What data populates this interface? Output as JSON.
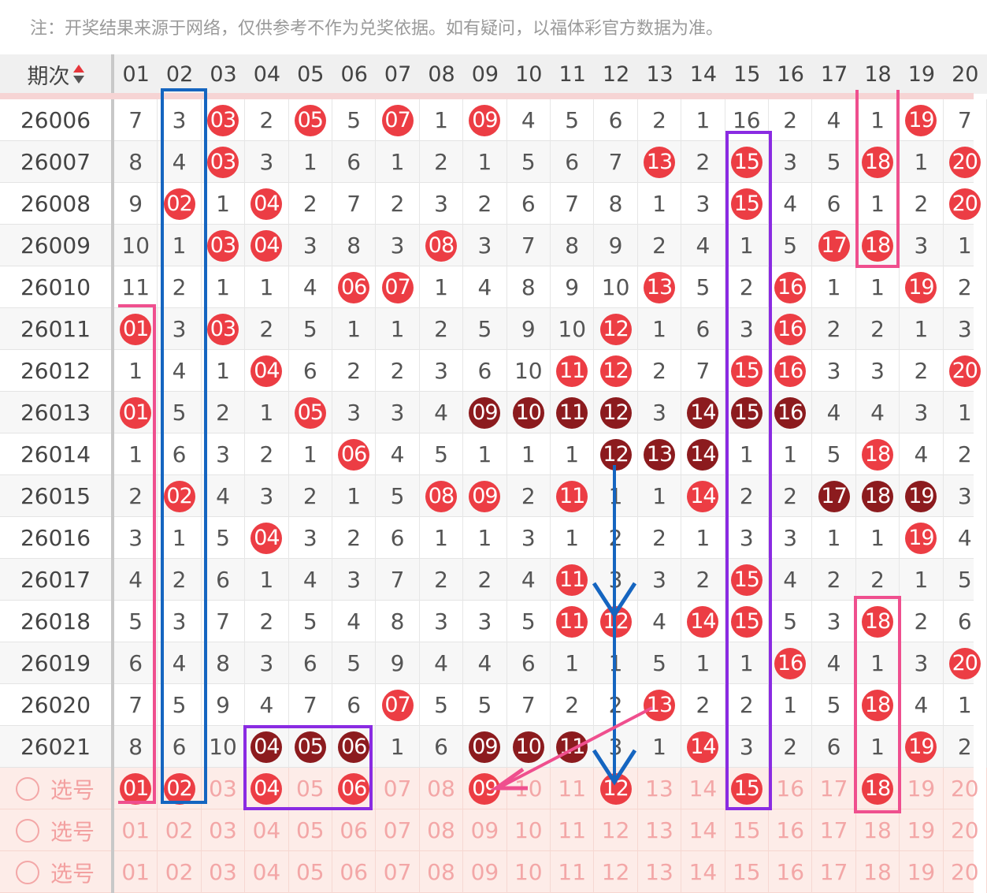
{
  "notice": "注：开奖结果来源于网络，仅供参考不作为兑奖依据。如有疑问，以福体彩官方数据为准。",
  "header": {
    "issue_label": "期次",
    "columns": [
      "01",
      "02",
      "03",
      "04",
      "05",
      "06",
      "07",
      "08",
      "09",
      "10",
      "11",
      "12",
      "13",
      "14",
      "15",
      "16",
      "17",
      "18",
      "19",
      "20"
    ]
  },
  "rows": [
    {
      "issue": "26006",
      "cells": [
        "7",
        "3",
        "03",
        "2",
        "05",
        "5",
        "07",
        "1",
        "09",
        "4",
        "5",
        "6",
        "2",
        "1",
        "16",
        "2",
        "4",
        "1",
        "19",
        "7"
      ],
      "hits": [
        3,
        5,
        7,
        9,
        19
      ]
    },
    {
      "issue": "26007",
      "cells": [
        "8",
        "4",
        "03",
        "3",
        "1",
        "6",
        "1",
        "2",
        "1",
        "5",
        "6",
        "7",
        "13",
        "2",
        "15",
        "3",
        "5",
        "18",
        "1",
        "20"
      ],
      "hits": [
        3,
        13,
        15,
        18,
        20
      ]
    },
    {
      "issue": "26008",
      "cells": [
        "9",
        "02",
        "1",
        "04",
        "2",
        "7",
        "2",
        "3",
        "2",
        "6",
        "7",
        "8",
        "1",
        "3",
        "15",
        "4",
        "6",
        "1",
        "2",
        "20"
      ],
      "hits": [
        2,
        4,
        15,
        20
      ]
    },
    {
      "issue": "26009",
      "cells": [
        "10",
        "1",
        "03",
        "04",
        "3",
        "8",
        "3",
        "08",
        "3",
        "7",
        "8",
        "9",
        "2",
        "4",
        "1",
        "5",
        "17",
        "18",
        "3",
        "1"
      ],
      "hits": [
        3,
        4,
        8,
        17,
        18
      ]
    },
    {
      "issue": "26010",
      "cells": [
        "11",
        "2",
        "1",
        "1",
        "4",
        "06",
        "07",
        "1",
        "4",
        "8",
        "9",
        "10",
        "13",
        "5",
        "2",
        "16",
        "1",
        "1",
        "19",
        "2"
      ],
      "hits": [
        6,
        7,
        13,
        16,
        19
      ]
    },
    {
      "issue": "26011",
      "cells": [
        "01",
        "3",
        "03",
        "2",
        "5",
        "1",
        "1",
        "2",
        "5",
        "9",
        "10",
        "12",
        "1",
        "6",
        "3",
        "16",
        "2",
        "2",
        "1",
        "3"
      ],
      "hits": [
        1,
        3,
        12,
        16
      ]
    },
    {
      "issue": "26012",
      "cells": [
        "1",
        "4",
        "1",
        "04",
        "6",
        "2",
        "2",
        "3",
        "6",
        "10",
        "11",
        "12",
        "2",
        "7",
        "15",
        "16",
        "3",
        "3",
        "2",
        "20"
      ],
      "hits": [
        4,
        11,
        12,
        15,
        16,
        20
      ]
    },
    {
      "issue": "26013",
      "cells": [
        "01",
        "5",
        "2",
        "1",
        "05",
        "3",
        "3",
        "4",
        "09",
        "10",
        "11",
        "12",
        "3",
        "14",
        "15",
        "16",
        "4",
        "4",
        "3",
        "1"
      ],
      "hits": [
        1,
        5
      ],
      "dark": [
        9,
        10,
        11,
        12,
        14,
        15,
        16
      ]
    },
    {
      "issue": "26014",
      "cells": [
        "1",
        "6",
        "3",
        "2",
        "1",
        "06",
        "4",
        "5",
        "1",
        "1",
        "1",
        "12",
        "13",
        "14",
        "1",
        "1",
        "5",
        "18",
        "4",
        "2"
      ],
      "hits": [
        6,
        18
      ],
      "dark": [
        12,
        13,
        14
      ]
    },
    {
      "issue": "26015",
      "cells": [
        "2",
        "02",
        "4",
        "3",
        "2",
        "1",
        "5",
        "08",
        "09",
        "2",
        "11",
        "1",
        "1",
        "14",
        "2",
        "2",
        "17",
        "18",
        "19",
        "3"
      ],
      "hits": [
        2,
        8,
        9,
        11,
        14
      ],
      "dark": [
        17,
        18,
        19
      ]
    },
    {
      "issue": "26016",
      "cells": [
        "3",
        "1",
        "5",
        "04",
        "3",
        "2",
        "6",
        "1",
        "1",
        "3",
        "1",
        "2",
        "2",
        "1",
        "3",
        "3",
        "1",
        "1",
        "19",
        "4"
      ],
      "hits": [
        4,
        19
      ]
    },
    {
      "issue": "26017",
      "cells": [
        "4",
        "2",
        "6",
        "1",
        "4",
        "3",
        "7",
        "2",
        "2",
        "4",
        "11",
        "3",
        "3",
        "2",
        "15",
        "4",
        "2",
        "2",
        "1",
        "5"
      ],
      "hits": [
        11,
        15
      ]
    },
    {
      "issue": "26018",
      "cells": [
        "5",
        "3",
        "7",
        "2",
        "5",
        "4",
        "8",
        "3",
        "3",
        "5",
        "11",
        "12",
        "4",
        "14",
        "15",
        "5",
        "3",
        "18",
        "2",
        "6"
      ],
      "hits": [
        11,
        12,
        14,
        15,
        18
      ]
    },
    {
      "issue": "26019",
      "cells": [
        "6",
        "4",
        "8",
        "3",
        "6",
        "5",
        "9",
        "4",
        "4",
        "6",
        "1",
        "1",
        "5",
        "1",
        "1",
        "16",
        "4",
        "1",
        "3",
        "20"
      ],
      "hits": [
        16,
        20
      ]
    },
    {
      "issue": "26020",
      "cells": [
        "7",
        "5",
        "9",
        "4",
        "7",
        "6",
        "07",
        "5",
        "5",
        "7",
        "2",
        "2",
        "13",
        "2",
        "2",
        "1",
        "5",
        "18",
        "4",
        "1"
      ],
      "hits": [
        7,
        13,
        18
      ]
    },
    {
      "issue": "26021",
      "cells": [
        "8",
        "6",
        "10",
        "04",
        "05",
        "06",
        "1",
        "6",
        "09",
        "10",
        "11",
        "3",
        "1",
        "14",
        "3",
        "2",
        "6",
        "1",
        "19",
        "2"
      ],
      "hits": [
        14,
        19
      ],
      "dark": [
        4,
        5,
        6,
        9,
        10,
        11
      ]
    }
  ],
  "pick_rows": [
    {
      "label": "选号",
      "cells": [
        "01",
        "02",
        "03",
        "04",
        "05",
        "06",
        "07",
        "08",
        "09",
        "10",
        "11",
        "12",
        "13",
        "14",
        "15",
        "16",
        "17",
        "18",
        "19",
        "20"
      ],
      "hits": [
        1,
        2,
        4,
        6,
        9,
        12,
        15,
        18
      ]
    },
    {
      "label": "选号",
      "cells": [
        "01",
        "02",
        "03",
        "04",
        "05",
        "06",
        "07",
        "08",
        "09",
        "10",
        "11",
        "12",
        "13",
        "14",
        "15",
        "16",
        "17",
        "18",
        "19",
        "20"
      ],
      "hits": []
    },
    {
      "label": "选号",
      "cells": [
        "01",
        "02",
        "03",
        "04",
        "05",
        "06",
        "07",
        "08",
        "09",
        "10",
        "11",
        "12",
        "13",
        "14",
        "15",
        "16",
        "17",
        "18",
        "19",
        "20"
      ],
      "hits": []
    }
  ],
  "colors": {
    "hit": "#ec3d44",
    "dark_hit": "#8c1b1e",
    "blue_annotation": "#1565c0",
    "purple_annotation": "#8a2be2",
    "pink_annotation": "#ef4f8e"
  }
}
